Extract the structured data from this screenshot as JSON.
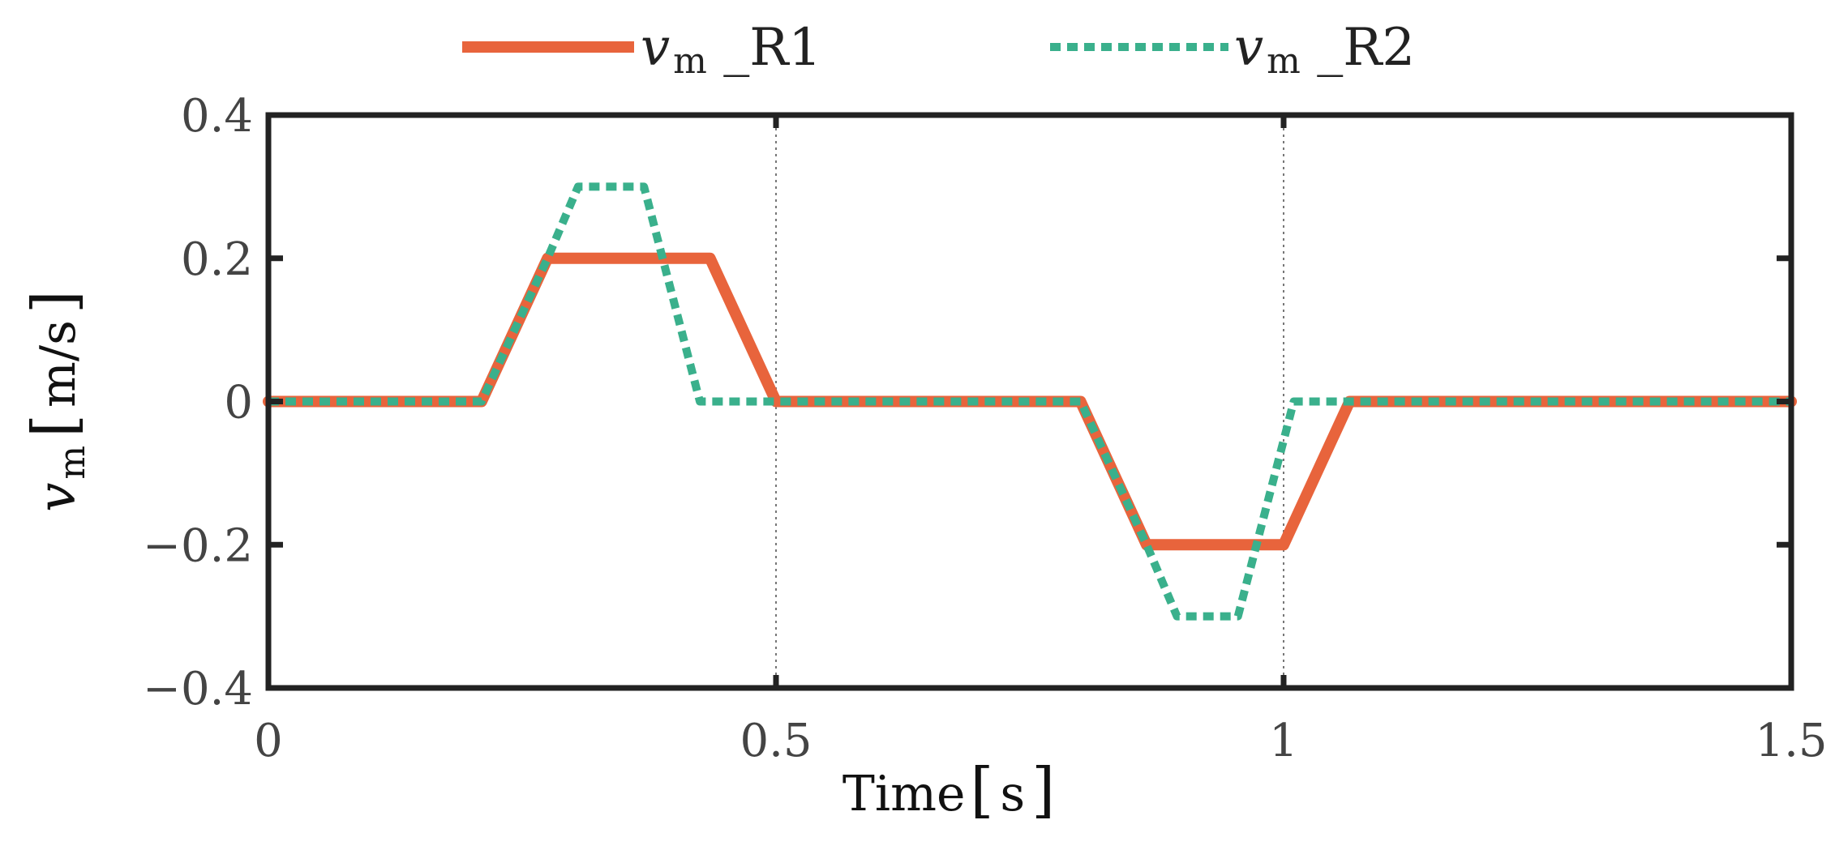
{
  "chart_data": {
    "type": "line",
    "xlabel": "Time",
    "xlabel_unit": "s",
    "ylabel_var": "v",
    "ylabel_sub": "m",
    "ylabel_unit": "m/s",
    "xlim": [
      0,
      1.5
    ],
    "ylim": [
      -0.4,
      0.4
    ],
    "x_ticks": [
      0,
      0.5,
      1,
      1.5
    ],
    "x_tick_labels": [
      "0",
      "0.5",
      "1",
      "1.5"
    ],
    "y_ticks": [
      -0.4,
      -0.2,
      0,
      0.2,
      0.4
    ],
    "y_tick_labels": [
      "−0.4",
      "−0.2",
      "0",
      "0.2",
      "0.4"
    ],
    "grid": "vertical-dotted",
    "legend_position": "top-center",
    "series": [
      {
        "legend_var": "v",
        "legend_sub": "m",
        "legend_suffix": " _R1",
        "color": "#E8643C",
        "style": "solid",
        "x": [
          0,
          0.21,
          0.275,
          0.435,
          0.5,
          0.8,
          0.865,
          1.0,
          1.065,
          1.5
        ],
        "y": [
          0,
          0,
          0.2,
          0.2,
          0,
          0,
          -0.2,
          -0.2,
          0,
          0
        ]
      },
      {
        "legend_var": "v",
        "legend_sub": "m",
        "legend_suffix": " _R2",
        "color": "#3AB08C",
        "style": "dotted",
        "x": [
          0,
          0.21,
          0.275,
          0.305,
          0.37,
          0.425,
          0.5,
          0.8,
          0.865,
          0.895,
          0.955,
          1.01,
          1.5
        ],
        "y": [
          0,
          0,
          0.2,
          0.3,
          0.3,
          0,
          0,
          0,
          -0.2,
          -0.3,
          -0.3,
          0,
          0
        ]
      }
    ]
  }
}
